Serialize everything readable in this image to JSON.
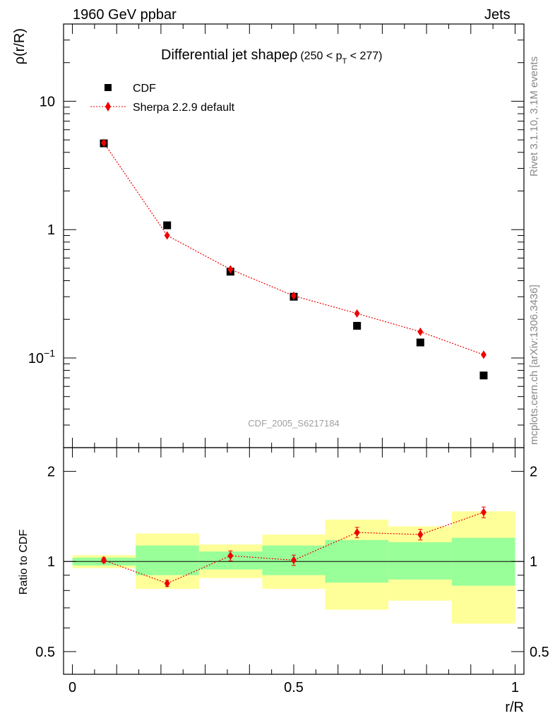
{
  "header": {
    "left": "1960 GeV ppbar",
    "right": "Jets"
  },
  "side_labels": {
    "rivet": "Rivet 3.1.10,  3.1M events",
    "mcplots": "mcplots.cern.ch [arXiv:1306.3436]"
  },
  "watermark": "CDF_2005_S6217184",
  "chart_data": [
    {
      "type": "scatter",
      "title": "Differential jet shapeρ",
      "title_range": "(250 < p_T < 277)",
      "ylabel": "ρ(r/R)",
      "yscale": "log",
      "xlim": [
        -0.02,
        1.02
      ],
      "ylim": [
        0.02,
        40
      ],
      "yticks": [
        {
          "value": 10,
          "label": "10"
        },
        {
          "value": 1,
          "label": "1"
        },
        {
          "value": 0.1,
          "label": "10^-1"
        }
      ],
      "legend": "top-left",
      "series": [
        {
          "name": "CDF",
          "marker": "square",
          "color": "#000000",
          "x": [
            0.071,
            0.214,
            0.357,
            0.5,
            0.643,
            0.786,
            0.929
          ],
          "y": [
            4.7,
            1.08,
            0.47,
            0.3,
            0.178,
            0.132,
            0.073
          ]
        },
        {
          "name": "Sherpa 2.2.9 default",
          "marker": "diamond",
          "color": "#ee0000",
          "line": "dotted",
          "x": [
            0.071,
            0.214,
            0.357,
            0.5,
            0.643,
            0.786,
            0.929
          ],
          "y": [
            4.75,
            0.9,
            0.49,
            0.305,
            0.222,
            0.16,
            0.106
          ]
        }
      ]
    },
    {
      "type": "scatter",
      "ylabel": "Ratio to CDF",
      "xlabel": "r/R",
      "xlim": [
        -0.02,
        1.02
      ],
      "ylim": [
        0.42,
        2.4
      ],
      "yscale": "log",
      "yticks": [
        {
          "value": 2,
          "label": "2"
        },
        {
          "value": 1,
          "label": "1"
        },
        {
          "value": 0.5,
          "label": "0.5"
        }
      ],
      "xticks": [
        {
          "value": 0,
          "label": "0"
        },
        {
          "value": 0.5,
          "label": "0.5"
        },
        {
          "value": 1,
          "label": "1"
        }
      ],
      "bands": [
        {
          "x0": 0.0,
          "x1": 0.143,
          "y_lo": 0.95,
          "y_hi": 1.05,
          "inner_lo": 0.97,
          "inner_hi": 1.03
        },
        {
          "x0": 0.143,
          "x1": 0.286,
          "y_lo": 0.81,
          "y_hi": 1.24,
          "inner_lo": 0.9,
          "inner_hi": 1.13
        },
        {
          "x0": 0.286,
          "x1": 0.429,
          "y_lo": 0.88,
          "y_hi": 1.14,
          "inner_lo": 0.94,
          "inner_hi": 1.08
        },
        {
          "x0": 0.429,
          "x1": 0.571,
          "y_lo": 0.81,
          "y_hi": 1.23,
          "inner_lo": 0.9,
          "inner_hi": 1.13
        },
        {
          "x0": 0.571,
          "x1": 0.714,
          "y_lo": 0.69,
          "y_hi": 1.38,
          "inner_lo": 0.85,
          "inner_hi": 1.18
        },
        {
          "x0": 0.714,
          "x1": 0.857,
          "y_lo": 0.74,
          "y_hi": 1.31,
          "inner_lo": 0.87,
          "inner_hi": 1.16
        },
        {
          "x0": 0.857,
          "x1": 1.0,
          "y_lo": 0.62,
          "y_hi": 1.47,
          "inner_lo": 0.83,
          "inner_hi": 1.2
        }
      ],
      "series": [
        {
          "name": "Sherpa 2.2.9 default",
          "marker": "diamond",
          "color": "#ee0000",
          "line": "dotted",
          "x": [
            0.071,
            0.214,
            0.357,
            0.5,
            0.643,
            0.786,
            0.929
          ],
          "y": [
            1.01,
            0.845,
            1.045,
            1.01,
            1.25,
            1.23,
            1.46
          ],
          "err": [
            0.02,
            0.02,
            0.04,
            0.04,
            0.05,
            0.05,
            0.06
          ]
        }
      ]
    }
  ]
}
